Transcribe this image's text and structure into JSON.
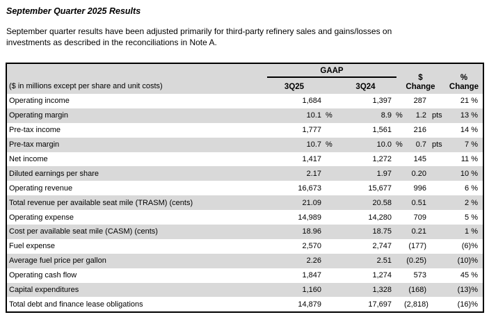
{
  "page": {
    "title": "September Quarter 2025 Results",
    "intro": "September quarter results have been adjusted primarily for third-party refinery sales and gains/losses on\ninvestments as described in the reconciliations in Note A."
  },
  "colors": {
    "header_bg": "#d9d9d9",
    "row_alt_bg": "#d9d9d9",
    "table_border": "#000000",
    "text": "#000000"
  },
  "table": {
    "units_note": "($ in millions except per share and unit costs)",
    "gaap_label": "GAAP",
    "col_3q25": "3Q25",
    "col_3q24": "3Q24",
    "dollar_change_line1": "$",
    "dollar_change_line2": "Change",
    "pct_change_line1": "%",
    "pct_change_line2": "Change",
    "rows": [
      {
        "label": "Operating income",
        "q1": "1,684",
        "q1s": "",
        "q2": "1,397",
        "q2s": "",
        "d": "287",
        "ds": "",
        "p": "21 %"
      },
      {
        "label": "Operating margin",
        "q1": "10.1",
        "q1s": "%",
        "q2": "8.9",
        "q2s": "%",
        "d": "1.2",
        "ds": "pts",
        "p": "13 %"
      },
      {
        "label": "Pre-tax income",
        "q1": "1,777",
        "q1s": "",
        "q2": "1,561",
        "q2s": "",
        "d": "216",
        "ds": "",
        "p": "14 %"
      },
      {
        "label": "Pre-tax margin",
        "q1": "10.7",
        "q1s": "%",
        "q2": "10.0",
        "q2s": "%",
        "d": "0.7",
        "ds": "pts",
        "p": "7 %"
      },
      {
        "label": "Net income",
        "q1": "1,417",
        "q1s": "",
        "q2": "1,272",
        "q2s": "",
        "d": "145",
        "ds": "",
        "p": "11 %"
      },
      {
        "label": "Diluted earnings per share",
        "q1": "2.17",
        "q1s": "",
        "q2": "1.97",
        "q2s": "",
        "d": "0.20",
        "ds": "",
        "p": "10 %"
      },
      {
        "label": "Operating revenue",
        "q1": "16,673",
        "q1s": "",
        "q2": "15,677",
        "q2s": "",
        "d": "996",
        "ds": "",
        "p": "6 %"
      },
      {
        "label": "Total revenue per available seat mile (TRASM) (cents)",
        "q1": "21.09",
        "q1s": "",
        "q2": "20.58",
        "q2s": "",
        "d": "0.51",
        "ds": "",
        "p": "2 %"
      },
      {
        "label": "Operating expense",
        "q1": "14,989",
        "q1s": "",
        "q2": "14,280",
        "q2s": "",
        "d": "709",
        "ds": "",
        "p": "5 %"
      },
      {
        "label": "Cost per available seat mile (CASM) (cents)",
        "q1": "18.96",
        "q1s": "",
        "q2": "18.75",
        "q2s": "",
        "d": "0.21",
        "ds": "",
        "p": "1 %"
      },
      {
        "label": "Fuel expense",
        "q1": "2,570",
        "q1s": "",
        "q2": "2,747",
        "q2s": "",
        "d": "(177)",
        "ds": "",
        "p": "(6)%"
      },
      {
        "label": "Average fuel price per gallon",
        "q1": "2.26",
        "q1s": "",
        "q2": "2.51",
        "q2s": "",
        "d": "(0.25)",
        "ds": "",
        "p": "(10)%"
      },
      {
        "label": "Operating cash flow",
        "q1": "1,847",
        "q1s": "",
        "q2": "1,274",
        "q2s": "",
        "d": "573",
        "ds": "",
        "p": "45 %"
      },
      {
        "label": "Capital expenditures",
        "q1": "1,160",
        "q1s": "",
        "q2": "1,328",
        "q2s": "",
        "d": "(168)",
        "ds": "",
        "p": "(13)%"
      },
      {
        "label": "Total debt and finance lease obligations",
        "q1": "14,879",
        "q1s": "",
        "q2": "17,697",
        "q2s": "",
        "d": "(2,818)",
        "ds": "",
        "p": "(16)%"
      }
    ]
  }
}
